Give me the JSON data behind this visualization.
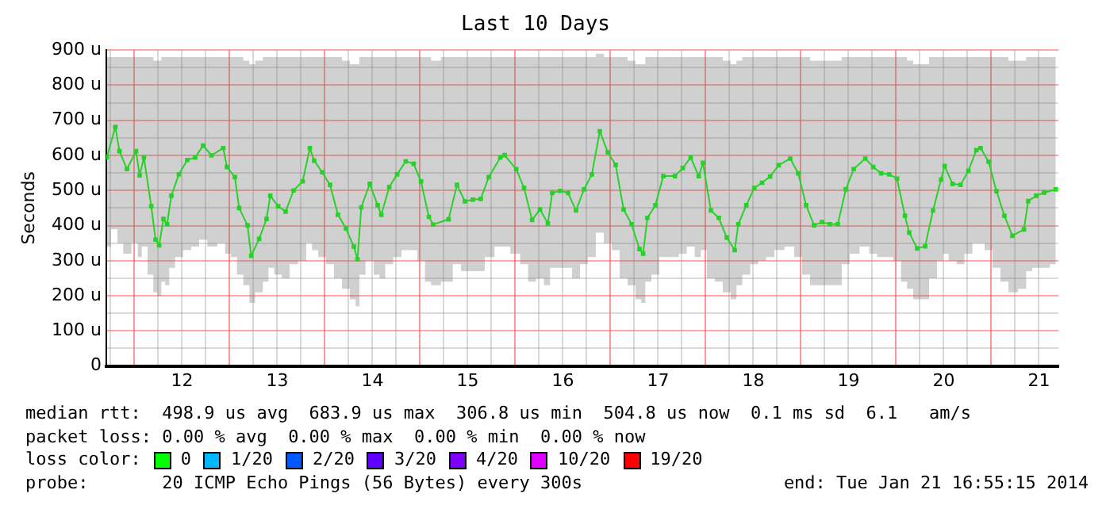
{
  "chart_data": {
    "type": "line",
    "title": "Last 10 Days",
    "ylabel": "Seconds",
    "xlim": [
      11.705,
      21.705
    ],
    "xticks": [
      {
        "value": 11.75,
        "label": null
      },
      {
        "value": 12,
        "label": null
      },
      {
        "value": 12.25,
        "label": null
      },
      {
        "value": 12.5,
        "label": "12"
      },
      {
        "value": 12.75,
        "label": null
      },
      {
        "value": 13,
        "label": null
      },
      {
        "value": 13.25,
        "label": null
      },
      {
        "value": 13.5,
        "label": "13"
      },
      {
        "value": 13.75,
        "label": null
      },
      {
        "value": 14,
        "label": null
      },
      {
        "value": 14.25,
        "label": null
      },
      {
        "value": 14.5,
        "label": "14"
      },
      {
        "value": 14.75,
        "label": null
      },
      {
        "value": 15,
        "label": null
      },
      {
        "value": 15.25,
        "label": null
      },
      {
        "value": 15.5,
        "label": "15"
      },
      {
        "value": 15.75,
        "label": null
      },
      {
        "value": 16,
        "label": null
      },
      {
        "value": 16.25,
        "label": null
      },
      {
        "value": 16.5,
        "label": "16"
      },
      {
        "value": 16.75,
        "label": null
      },
      {
        "value": 17,
        "label": null
      },
      {
        "value": 17.25,
        "label": null
      },
      {
        "value": 17.5,
        "label": "17"
      },
      {
        "value": 17.75,
        "label": null
      },
      {
        "value": 18,
        "label": null
      },
      {
        "value": 18.25,
        "label": null
      },
      {
        "value": 18.5,
        "label": "18"
      },
      {
        "value": 18.75,
        "label": null
      },
      {
        "value": 19,
        "label": null
      },
      {
        "value": 19.25,
        "label": null
      },
      {
        "value": 19.5,
        "label": "19"
      },
      {
        "value": 19.75,
        "label": null
      },
      {
        "value": 20,
        "label": null
      },
      {
        "value": 20.25,
        "label": null
      },
      {
        "value": 20.5,
        "label": "20"
      },
      {
        "value": 20.75,
        "label": null
      },
      {
        "value": 21,
        "label": null
      },
      {
        "value": 21.25,
        "label": null
      },
      {
        "value": 21.5,
        "label": "21"
      }
    ],
    "ylim": [
      0,
      900
    ],
    "yticks": [
      0,
      {
        "value": 50,
        "label": null
      },
      {
        "value": 100,
        "label": "100 u"
      },
      {
        "value": 150,
        "label": null
      },
      {
        "value": 200,
        "label": "200 u"
      },
      {
        "value": 250,
        "label": null
      },
      {
        "value": 300,
        "label": "300 u"
      },
      {
        "value": 350,
        "label": null
      },
      {
        "value": 400,
        "label": "400 u"
      },
      {
        "value": 450,
        "label": null
      },
      {
        "value": 500,
        "label": "500 u"
      },
      {
        "value": 550,
        "label": null
      },
      {
        "value": 600,
        "label": "600 u"
      },
      {
        "value": 650,
        "label": null
      },
      {
        "value": 700,
        "label": "700 u"
      },
      {
        "value": 750,
        "label": null
      },
      {
        "value": 800,
        "label": "800 u"
      },
      {
        "value": 850,
        "label": null
      },
      {
        "value": 900,
        "label": "900 u"
      }
    ],
    "grid": true,
    "marker": "square",
    "line_style": "solid",
    "legend": "bottom",
    "legend_title": "loss color:",
    "x": [
      11.71,
      11.8,
      11.843,
      11.922,
      12.017,
      12.055,
      12.1,
      12.177,
      12.222,
      12.26,
      12.305,
      12.343,
      12.388,
      12.467,
      12.555,
      12.638,
      12.722,
      12.81,
      12.933,
      12.972,
      13.055,
      13.1,
      13.188,
      13.227,
      13.31,
      13.388,
      13.427,
      13.51,
      13.588,
      13.672,
      13.767,
      13.843,
      13.888,
      13.972,
      14.055,
      14.138,
      14.222,
      14.305,
      14.343,
      14.383,
      14.472,
      14.555,
      14.593,
      14.677,
      14.76,
      14.85,
      14.933,
      15.01,
      15.093,
      15.138,
      15.3,
      15.388,
      15.472,
      15.555,
      15.638,
      15.722,
      15.843,
      15.888,
      16.01,
      16.093,
      16.177,
      16.26,
      16.343,
      16.388,
      16.472,
      16.555,
      16.638,
      16.722,
      16.805,
      16.888,
      16.972,
      17.055,
      17.138,
      17.222,
      17.305,
      17.343,
      17.388,
      17.472,
      17.555,
      17.677,
      17.76,
      17.843,
      17.927,
      17.972,
      18.055,
      18.138,
      18.222,
      18.305,
      18.343,
      18.427,
      18.51,
      18.593,
      18.677,
      18.767,
      18.888,
      18.972,
      19.055,
      19.138,
      19.222,
      19.305,
      19.388,
      19.472,
      19.555,
      19.677,
      19.76,
      19.843,
      19.927,
      20.01,
      20.093,
      20.138,
      20.222,
      20.305,
      20.388,
      20.472,
      20.51,
      20.593,
      20.677,
      20.76,
      20.843,
      20.888,
      20.972,
      21.055,
      21.138,
      21.222,
      21.343,
      21.388,
      21.472,
      21.555,
      21.677
    ],
    "series": [
      {
        "name": "0",
        "color": "#00ff00",
        "values": [
          595,
          681,
          612,
          561,
          612,
          543,
          594,
          455,
          360,
          344,
          419,
          404,
          485,
          546,
          587,
          594,
          628,
          600,
          621,
          567,
          538,
          450,
          401,
          314,
          362,
          419,
          485,
          455,
          440,
          500,
          526,
          621,
          585,
          552,
          516,
          431,
          392,
          340,
          304,
          452,
          519,
          458,
          431,
          510,
          546,
          583,
          576,
          526,
          425,
          403,
          418,
          516,
          469,
          474,
          476,
          538,
          594,
          601,
          561,
          507,
          416,
          446,
          406,
          493,
          499,
          493,
          443,
          503,
          546,
          669,
          609,
          573,
          446,
          404,
          333,
          320,
          422,
          458,
          541,
          541,
          564,
          594,
          541,
          579,
          443,
          422,
          366,
          330,
          404,
          458,
          507,
          522,
          540,
          572,
          591,
          549,
          458,
          401,
          410,
          404,
          404,
          503,
          561,
          591,
          567,
          549,
          546,
          534,
          428,
          380,
          335,
          341,
          443,
          531,
          570,
          519,
          516,
          556,
          615,
          621,
          582,
          498,
          428,
          371,
          389,
          470,
          485,
          494,
          503
        ],
        "lower": [
          340,
          390,
          350,
          320,
          350,
          310,
          340,
          260,
          210,
          200,
          240,
          230,
          280,
          310,
          330,
          340,
          360,
          340,
          350,
          320,
          310,
          260,
          230,
          180,
          210,
          240,
          280,
          260,
          250,
          290,
          300,
          350,
          330,
          310,
          290,
          250,
          220,
          190,
          170,
          260,
          300,
          260,
          250,
          290,
          310,
          330,
          330,
          300,
          240,
          230,
          240,
          290,
          270,
          270,
          270,
          310,
          340,
          340,
          320,
          290,
          240,
          250,
          230,
          280,
          280,
          280,
          250,
          290,
          310,
          380,
          350,
          330,
          250,
          230,
          190,
          180,
          240,
          260,
          310,
          310,
          320,
          340,
          310,
          330,
          250,
          240,
          210,
          190,
          230,
          260,
          290,
          300,
          310,
          330,
          340,
          310,
          260,
          230,
          230,
          230,
          230,
          290,
          320,
          340,
          320,
          310,
          310,
          300,
          240,
          220,
          190,
          190,
          250,
          300,
          320,
          300,
          290,
          320,
          350,
          350,
          330,
          280,
          240,
          210,
          220,
          270,
          280,
          280,
          290
        ],
        "upper": [
          880,
          880,
          880,
          880,
          880,
          880,
          880,
          880,
          870,
          870,
          880,
          880,
          880,
          880,
          880,
          880,
          880,
          880,
          880,
          880,
          880,
          880,
          870,
          860,
          870,
          880,
          880,
          880,
          880,
          880,
          880,
          880,
          880,
          880,
          880,
          880,
          870,
          860,
          860,
          880,
          880,
          880,
          880,
          880,
          880,
          880,
          880,
          880,
          880,
          870,
          880,
          880,
          880,
          880,
          880,
          880,
          880,
          880,
          880,
          880,
          880,
          880,
          880,
          880,
          880,
          880,
          880,
          880,
          880,
          890,
          880,
          880,
          880,
          870,
          860,
          860,
          880,
          880,
          880,
          880,
          880,
          880,
          880,
          880,
          880,
          880,
          870,
          860,
          870,
          880,
          880,
          880,
          880,
          880,
          880,
          880,
          880,
          870,
          870,
          870,
          870,
          880,
          880,
          880,
          880,
          880,
          880,
          880,
          880,
          870,
          860,
          860,
          880,
          880,
          880,
          880,
          880,
          880,
          880,
          880,
          880,
          880,
          880,
          870,
          870,
          880,
          880,
          880,
          880
        ]
      },
      {
        "name": "1/20",
        "color": "#00b8ff",
        "values": [
          null,
          null,
          null,
          null,
          null,
          null,
          null,
          null,
          null,
          null,
          null,
          null,
          null,
          null,
          null,
          null,
          null,
          null,
          null,
          null,
          null,
          null,
          null,
          null,
          null,
          null,
          null,
          null,
          null,
          null,
          null,
          null,
          null,
          null,
          null,
          null,
          null,
          null,
          null,
          null,
          null,
          null,
          null,
          null,
          null,
          null,
          null,
          null,
          null,
          null,
          null,
          null,
          null,
          null,
          null,
          null,
          null,
          null,
          null,
          null,
          null,
          null,
          null,
          null,
          null,
          null,
          null,
          null,
          null,
          null,
          null,
          null,
          null,
          null,
          null,
          null,
          null,
          null,
          null,
          null,
          null,
          null,
          null,
          null,
          null,
          null,
          null,
          null,
          null,
          null,
          null,
          null,
          null,
          null,
          null,
          null,
          null,
          null,
          null,
          null,
          null,
          null,
          null,
          null,
          null,
          null,
          null,
          null,
          null,
          null,
          null,
          null,
          null,
          null,
          null,
          null,
          null,
          null,
          null,
          null,
          null,
          null,
          null,
          null,
          null,
          null,
          null,
          null,
          null
        ]
      },
      {
        "name": "2/20",
        "color": "#0059ff",
        "values": [
          null,
          null,
          null,
          null,
          null,
          null,
          null,
          null,
          null,
          null,
          null,
          null,
          null,
          null,
          null,
          null,
          null,
          null,
          null,
          null,
          null,
          null,
          null,
          null,
          null,
          null,
          null,
          null,
          null,
          null,
          null,
          null,
          null,
          null,
          null,
          null,
          null,
          null,
          null,
          null,
          null,
          null,
          null,
          null,
          null,
          null,
          null,
          null,
          null,
          null,
          null,
          null,
          null,
          null,
          null,
          null,
          null,
          null,
          null,
          null,
          null,
          null,
          null,
          null,
          null,
          null,
          null,
          null,
          null,
          null,
          null,
          null,
          null,
          null,
          null,
          null,
          null,
          null,
          null,
          null,
          null,
          null,
          null,
          null,
          null,
          null,
          null,
          null,
          null,
          null,
          null,
          null,
          null,
          null,
          null,
          null,
          null,
          null,
          null,
          null,
          null,
          null,
          null,
          null,
          null,
          null,
          null,
          null,
          null,
          null,
          null,
          null,
          null,
          null,
          null,
          null,
          null,
          null,
          null,
          null,
          null,
          null,
          null,
          null,
          null,
          null,
          null,
          null,
          null
        ]
      },
      {
        "name": "3/20",
        "color": "#5e00ff",
        "values": [
          null,
          null,
          null,
          null,
          null,
          null,
          null,
          null,
          null,
          null,
          null,
          null,
          null,
          null,
          null,
          null,
          null,
          null,
          null,
          null,
          null,
          null,
          null,
          null,
          null,
          null,
          null,
          null,
          null,
          null,
          null,
          null,
          null,
          null,
          null,
          null,
          null,
          null,
          null,
          null,
          null,
          null,
          null,
          null,
          null,
          null,
          null,
          null,
          null,
          null,
          null,
          null,
          null,
          null,
          null,
          null,
          null,
          null,
          null,
          null,
          null,
          null,
          null,
          null,
          null,
          null,
          null,
          null,
          null,
          null,
          null,
          null,
          null,
          null,
          null,
          null,
          null,
          null,
          null,
          null,
          null,
          null,
          null,
          null,
          null,
          null,
          null,
          null,
          null,
          null,
          null,
          null,
          null,
          null,
          null,
          null,
          null,
          null,
          null,
          null,
          null,
          null,
          null,
          null,
          null,
          null,
          null,
          null,
          null,
          null,
          null,
          null,
          null,
          null,
          null,
          null,
          null,
          null,
          null,
          null,
          null,
          null,
          null,
          null,
          null,
          null,
          null,
          null,
          null
        ]
      },
      {
        "name": "4/20",
        "color": "#7e00ff",
        "values": [
          null,
          null,
          null,
          null,
          null,
          null,
          null,
          null,
          null,
          null,
          null,
          null,
          null,
          null,
          null,
          null,
          null,
          null,
          null,
          null,
          null,
          null,
          null,
          null,
          null,
          null,
          null,
          null,
          null,
          null,
          null,
          null,
          null,
          null,
          null,
          null,
          null,
          null,
          null,
          null,
          null,
          null,
          null,
          null,
          null,
          null,
          null,
          null,
          null,
          null,
          null,
          null,
          null,
          null,
          null,
          null,
          null,
          null,
          null,
          null,
          null,
          null,
          null,
          null,
          null,
          null,
          null,
          null,
          null,
          null,
          null,
          null,
          null,
          null,
          null,
          null,
          null,
          null,
          null,
          null,
          null,
          null,
          null,
          null,
          null,
          null,
          null,
          null,
          null,
          null,
          null,
          null,
          null,
          null,
          null,
          null,
          null,
          null,
          null,
          null,
          null,
          null,
          null,
          null,
          null,
          null,
          null,
          null,
          null,
          null,
          null,
          null,
          null,
          null,
          null,
          null,
          null,
          null,
          null,
          null,
          null,
          null,
          null,
          null,
          null,
          null,
          null,
          null,
          null
        ]
      },
      {
        "name": "10/20",
        "color": "#dd00ff",
        "values": [
          null,
          null,
          null,
          null,
          null,
          null,
          null,
          null,
          null,
          null,
          null,
          null,
          null,
          null,
          null,
          null,
          null,
          null,
          null,
          null,
          null,
          null,
          null,
          null,
          null,
          null,
          null,
          null,
          null,
          null,
          null,
          null,
          null,
          null,
          null,
          null,
          null,
          null,
          null,
          null,
          null,
          null,
          null,
          null,
          null,
          null,
          null,
          null,
          null,
          null,
          null,
          null,
          null,
          null,
          null,
          null,
          null,
          null,
          null,
          null,
          null,
          null,
          null,
          null,
          null,
          null,
          null,
          null,
          null,
          null,
          null,
          null,
          null,
          null,
          null,
          null,
          null,
          null,
          null,
          null,
          null,
          null,
          null,
          null,
          null,
          null,
          null,
          null,
          null,
          null,
          null,
          null,
          null,
          null,
          null,
          null,
          null,
          null,
          null,
          null,
          null,
          null,
          null,
          null,
          null,
          null,
          null,
          null,
          null,
          null,
          null,
          null,
          null,
          null,
          null,
          null,
          null,
          null,
          null,
          null,
          null,
          null,
          null,
          null,
          null,
          null,
          null,
          null,
          null
        ]
      },
      {
        "name": "19/20",
        "color": "#ff0000",
        "values": [
          null,
          null,
          null,
          null,
          null,
          null,
          null,
          null,
          null,
          null,
          null,
          null,
          null,
          null,
          null,
          null,
          null,
          null,
          null,
          null,
          null,
          null,
          null,
          null,
          null,
          null,
          null,
          null,
          null,
          null,
          null,
          null,
          null,
          null,
          null,
          null,
          null,
          null,
          null,
          null,
          null,
          null,
          null,
          null,
          null,
          null,
          null,
          null,
          null,
          null,
          null,
          null,
          null,
          null,
          null,
          null,
          null,
          null,
          null,
          null,
          null,
          null,
          null,
          null,
          null,
          null,
          null,
          null,
          null,
          null,
          null,
          null,
          null,
          null,
          null,
          null,
          null,
          null,
          null,
          null,
          null,
          null,
          null,
          null,
          null,
          null,
          null,
          null,
          null,
          null,
          null,
          null,
          null,
          null,
          null,
          null,
          null,
          null,
          null,
          null,
          null,
          null,
          null,
          null,
          null,
          null,
          null,
          null,
          null,
          null,
          null,
          null,
          null,
          null,
          null,
          null,
          null,
          null,
          null,
          null,
          null,
          null,
          null,
          null,
          null,
          null,
          null,
          null,
          null
        ]
      }
    ],
    "annotations": [
      "median rtt:  498.9 us avg  683.9 us max  306.8 us min  504.8 us now  0.1 ms sd  6.1   am/s",
      "packet loss: 0.00 % avg  0.00 % max  0.00 % min  0.00 % now",
      "probe:       20 ICMP Echo Pings (56 Bytes) every 300s",
      "end: Tue Jan 21 16:55:15 2014"
    ]
  }
}
